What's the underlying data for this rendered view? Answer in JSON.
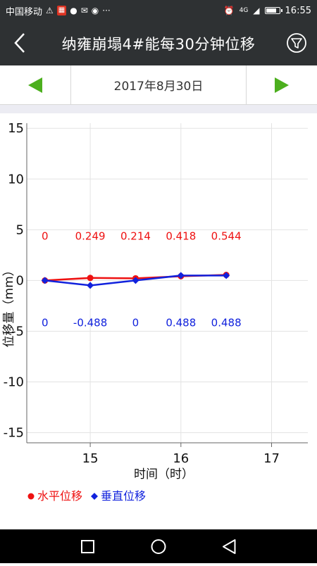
{
  "status_bar": {
    "carrier": "中国移动",
    "time": "16:55",
    "network": "4G",
    "battery_level": 0.85,
    "icons": [
      "warning-icon",
      "app-icon",
      "chat-icon",
      "mail-icon",
      "wechat-icon",
      "more-icon",
      "alarm-icon",
      "signal-icon",
      "battery-icon"
    ]
  },
  "app_bar": {
    "title": "纳雍崩塌4#能每30分钟位移",
    "back_icon": "chevron-left-icon",
    "filter_icon": "filter-icon"
  },
  "date_nav": {
    "date": "2017年8月30日",
    "prev_icon": "triangle-left-icon",
    "next_icon": "triangle-right-icon",
    "arrow_color": "#4caf1e"
  },
  "chart_data": {
    "type": "line",
    "xlabel": "时间（时）",
    "ylabel": "位移量（mm）",
    "xlim": [
      14.3,
      17.4
    ],
    "ylim": [
      -16,
      15.5
    ],
    "x_ticks": [
      15,
      16,
      17
    ],
    "y_ticks": [
      15,
      10,
      5,
      0,
      -5,
      -10,
      -15
    ],
    "grid": true,
    "series": [
      {
        "name": "水平位移",
        "color": "#ee1111",
        "marker": "circle",
        "x": [
          14.5,
          15.0,
          15.5,
          16.0,
          16.5
        ],
        "values": [
          0,
          0.249,
          0.214,
          0.418,
          0.544
        ],
        "labels": [
          "0",
          "0.249",
          "0.214",
          "0.418",
          "0.544"
        ],
        "label_position": "above"
      },
      {
        "name": "垂直位移",
        "color": "#1122dd",
        "marker": "diamond",
        "x": [
          14.5,
          15.0,
          15.5,
          16.0,
          16.5
        ],
        "values": [
          0,
          -0.488,
          0,
          0.488,
          0.488
        ],
        "labels": [
          "0",
          "-0.488",
          "0",
          "0.488",
          "0.488"
        ],
        "label_position": "below"
      }
    ],
    "legend": {
      "placement": "bottom-left"
    }
  },
  "nav_bar": {
    "icons": [
      "recents-square-icon",
      "home-circle-icon",
      "back-triangle-icon"
    ]
  }
}
